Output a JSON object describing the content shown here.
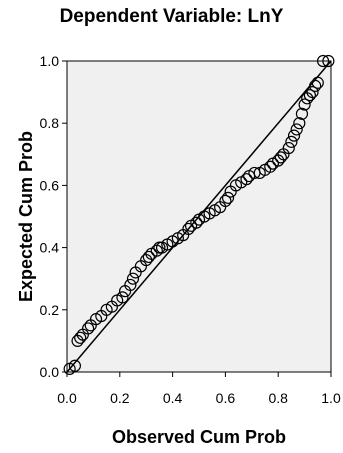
{
  "chart_data": {
    "type": "scatter",
    "title": "Dependent Variable: LnY",
    "xlabel": "Observed Cum Prob",
    "ylabel": "Expected Cum Prob",
    "xlim": [
      0,
      1
    ],
    "ylim": [
      0,
      1
    ],
    "x_ticks": [
      "0.0",
      "0.2",
      "0.4",
      "0.6",
      "0.8",
      "1.0"
    ],
    "y_ticks": [
      "0.0",
      "0.2",
      "0.4",
      "0.6",
      "0.8",
      "1.0"
    ],
    "grid": false,
    "reference_line": [
      [
        0,
        0
      ],
      [
        1,
        1
      ]
    ],
    "points": [
      [
        0.01,
        0.01
      ],
      [
        0.03,
        0.02
      ],
      [
        0.04,
        0.1
      ],
      [
        0.05,
        0.11
      ],
      [
        0.06,
        0.12
      ],
      [
        0.08,
        0.14
      ],
      [
        0.09,
        0.15
      ],
      [
        0.11,
        0.17
      ],
      [
        0.13,
        0.18
      ],
      [
        0.15,
        0.2
      ],
      [
        0.17,
        0.21
      ],
      [
        0.19,
        0.23
      ],
      [
        0.21,
        0.24
      ],
      [
        0.22,
        0.26
      ],
      [
        0.24,
        0.28
      ],
      [
        0.25,
        0.3
      ],
      [
        0.26,
        0.32
      ],
      [
        0.28,
        0.34
      ],
      [
        0.3,
        0.36
      ],
      [
        0.31,
        0.37
      ],
      [
        0.32,
        0.38
      ],
      [
        0.34,
        0.39
      ],
      [
        0.35,
        0.4
      ],
      [
        0.36,
        0.4
      ],
      [
        0.38,
        0.41
      ],
      [
        0.4,
        0.42
      ],
      [
        0.42,
        0.43
      ],
      [
        0.44,
        0.44
      ],
      [
        0.46,
        0.46
      ],
      [
        0.47,
        0.47
      ],
      [
        0.49,
        0.48
      ],
      [
        0.5,
        0.49
      ],
      [
        0.52,
        0.5
      ],
      [
        0.54,
        0.51
      ],
      [
        0.56,
        0.52
      ],
      [
        0.58,
        0.53
      ],
      [
        0.6,
        0.55
      ],
      [
        0.61,
        0.56
      ],
      [
        0.62,
        0.58
      ],
      [
        0.64,
        0.6
      ],
      [
        0.66,
        0.61
      ],
      [
        0.68,
        0.62
      ],
      [
        0.69,
        0.63
      ],
      [
        0.71,
        0.64
      ],
      [
        0.73,
        0.64
      ],
      [
        0.75,
        0.65
      ],
      [
        0.77,
        0.66
      ],
      [
        0.78,
        0.67
      ],
      [
        0.8,
        0.68
      ],
      [
        0.81,
        0.69
      ],
      [
        0.82,
        0.7
      ],
      [
        0.84,
        0.72
      ],
      [
        0.85,
        0.74
      ],
      [
        0.86,
        0.76
      ],
      [
        0.87,
        0.78
      ],
      [
        0.88,
        0.8
      ],
      [
        0.89,
        0.83
      ],
      [
        0.9,
        0.86
      ],
      [
        0.91,
        0.88
      ],
      [
        0.92,
        0.89
      ],
      [
        0.93,
        0.9
      ],
      [
        0.94,
        0.92
      ],
      [
        0.95,
        0.93
      ],
      [
        0.97,
        1.0
      ],
      [
        0.99,
        1.0
      ]
    ],
    "colors": {
      "plot_background": "#f0f0f0",
      "marker": "#000000",
      "line": "#000000"
    }
  }
}
